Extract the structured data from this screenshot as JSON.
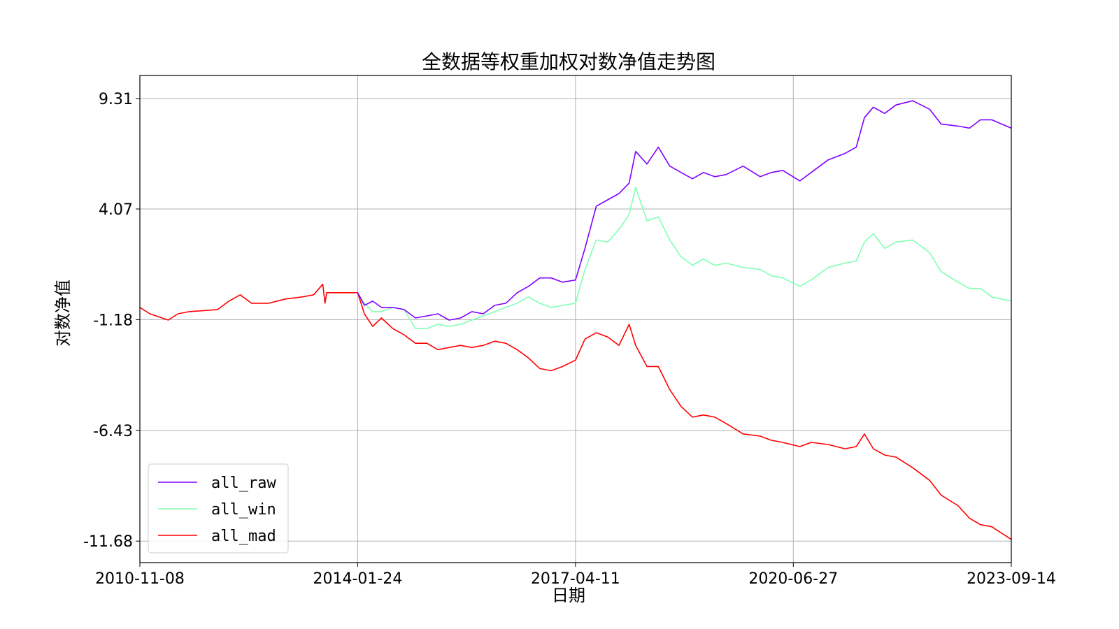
{
  "chart_data": {
    "type": "line",
    "title": "全数据等权重加权对数净值走势图",
    "xlabel": "日期",
    "ylabel": "对数净值",
    "x_ticks": [
      "2010-11-08",
      "2014-01-24",
      "2017-04-11",
      "2020-06-27",
      "2023-09-14"
    ],
    "y_ticks": [
      "9.31",
      "4.07",
      "-1.18",
      "-6.43",
      "-11.68"
    ],
    "xlim": [
      "2010-11-08",
      "2023-09-14"
    ],
    "ylim": [
      -12.7,
      10.4
    ],
    "grid": true,
    "legend_position": "lower-left",
    "series": [
      {
        "name": "all_raw",
        "color": "#8000ff",
        "points": [
          [
            "2014-01-24",
            0.1
          ],
          [
            "2014-03-01",
            -0.5
          ],
          [
            "2014-04-15",
            -0.3
          ],
          [
            "2014-06-01",
            -0.6
          ],
          [
            "2014-08-01",
            -0.6
          ],
          [
            "2014-10-01",
            -0.7
          ],
          [
            "2014-12-01",
            -1.1
          ],
          [
            "2015-02-01",
            -1.0
          ],
          [
            "2015-04-01",
            -0.9
          ],
          [
            "2015-06-01",
            -1.2
          ],
          [
            "2015-08-01",
            -1.1
          ],
          [
            "2015-10-01",
            -0.8
          ],
          [
            "2015-12-01",
            -0.9
          ],
          [
            "2016-02-01",
            -0.5
          ],
          [
            "2016-04-01",
            -0.4
          ],
          [
            "2016-06-01",
            0.1
          ],
          [
            "2016-08-01",
            0.4
          ],
          [
            "2016-10-01",
            0.8
          ],
          [
            "2016-12-01",
            0.8
          ],
          [
            "2017-02-01",
            0.6
          ],
          [
            "2017-04-11",
            0.7
          ],
          [
            "2017-06-01",
            2.2
          ],
          [
            "2017-08-01",
            4.2
          ],
          [
            "2017-10-01",
            4.5
          ],
          [
            "2017-12-01",
            4.8
          ],
          [
            "2018-01-25",
            5.3
          ],
          [
            "2018-03-01",
            6.8
          ],
          [
            "2018-05-01",
            6.2
          ],
          [
            "2018-07-01",
            7.0
          ],
          [
            "2018-09-01",
            6.1
          ],
          [
            "2018-11-01",
            5.8
          ],
          [
            "2019-01-01",
            5.5
          ],
          [
            "2019-03-01",
            5.8
          ],
          [
            "2019-05-01",
            5.6
          ],
          [
            "2019-07-01",
            5.7
          ],
          [
            "2019-10-01",
            6.1
          ],
          [
            "2020-01-01",
            5.6
          ],
          [
            "2020-03-01",
            5.8
          ],
          [
            "2020-05-01",
            5.9
          ],
          [
            "2020-08-01",
            5.4
          ],
          [
            "2020-10-01",
            5.8
          ],
          [
            "2021-01-01",
            6.4
          ],
          [
            "2021-04-01",
            6.7
          ],
          [
            "2021-06-01",
            7.0
          ],
          [
            "2021-07-15",
            8.4
          ],
          [
            "2021-09-01",
            8.9
          ],
          [
            "2021-11-01",
            8.6
          ],
          [
            "2022-01-01",
            9.0
          ],
          [
            "2022-04-01",
            9.2
          ],
          [
            "2022-07-01",
            8.8
          ],
          [
            "2022-09-01",
            8.1
          ],
          [
            "2022-12-01",
            8.0
          ],
          [
            "2023-02-01",
            7.9
          ],
          [
            "2023-04-01",
            8.3
          ],
          [
            "2023-06-01",
            8.3
          ],
          [
            "2023-09-14",
            7.9
          ]
        ]
      },
      {
        "name": "all_win",
        "color": "#80ffb4",
        "points": [
          [
            "2014-01-24",
            0.1
          ],
          [
            "2014-03-01",
            -0.4
          ],
          [
            "2014-04-15",
            -0.8
          ],
          [
            "2014-06-01",
            -0.8
          ],
          [
            "2014-08-01",
            -0.6
          ],
          [
            "2014-10-01",
            -0.7
          ],
          [
            "2014-12-01",
            -1.6
          ],
          [
            "2015-02-01",
            -1.6
          ],
          [
            "2015-04-01",
            -1.4
          ],
          [
            "2015-06-01",
            -1.5
          ],
          [
            "2015-08-01",
            -1.4
          ],
          [
            "2015-10-01",
            -1.2
          ],
          [
            "2015-12-01",
            -1.0
          ],
          [
            "2016-02-01",
            -0.8
          ],
          [
            "2016-04-01",
            -0.6
          ],
          [
            "2016-06-01",
            -0.4
          ],
          [
            "2016-08-01",
            -0.1
          ],
          [
            "2016-10-01",
            -0.4
          ],
          [
            "2016-12-01",
            -0.6
          ],
          [
            "2017-02-01",
            -0.5
          ],
          [
            "2017-04-11",
            -0.4
          ],
          [
            "2017-06-01",
            1.2
          ],
          [
            "2017-08-01",
            2.6
          ],
          [
            "2017-10-01",
            2.5
          ],
          [
            "2017-12-01",
            3.1
          ],
          [
            "2018-01-25",
            3.8
          ],
          [
            "2018-03-01",
            5.1
          ],
          [
            "2018-05-01",
            3.5
          ],
          [
            "2018-07-01",
            3.7
          ],
          [
            "2018-09-01",
            2.6
          ],
          [
            "2018-11-01",
            1.8
          ],
          [
            "2019-01-01",
            1.4
          ],
          [
            "2019-03-01",
            1.7
          ],
          [
            "2019-05-01",
            1.4
          ],
          [
            "2019-07-01",
            1.5
          ],
          [
            "2019-10-01",
            1.3
          ],
          [
            "2020-01-01",
            1.2
          ],
          [
            "2020-03-01",
            0.9
          ],
          [
            "2020-05-01",
            0.8
          ],
          [
            "2020-08-01",
            0.4
          ],
          [
            "2020-10-01",
            0.7
          ],
          [
            "2021-01-01",
            1.3
          ],
          [
            "2021-04-01",
            1.5
          ],
          [
            "2021-06-01",
            1.6
          ],
          [
            "2021-07-15",
            2.5
          ],
          [
            "2021-09-01",
            2.9
          ],
          [
            "2021-11-01",
            2.2
          ],
          [
            "2022-01-01",
            2.5
          ],
          [
            "2022-04-01",
            2.6
          ],
          [
            "2022-07-01",
            2.0
          ],
          [
            "2022-09-01",
            1.1
          ],
          [
            "2022-12-01",
            0.6
          ],
          [
            "2023-02-01",
            0.3
          ],
          [
            "2023-04-01",
            0.3
          ],
          [
            "2023-06-01",
            -0.1
          ],
          [
            "2023-09-14",
            -0.3
          ]
        ]
      },
      {
        "name": "all_mad",
        "color": "#ff0000",
        "points": [
          [
            "2010-11-08",
            -0.6
          ],
          [
            "2011-01-01",
            -0.9
          ],
          [
            "2011-04-10",
            -1.2
          ],
          [
            "2011-06-01",
            -0.9
          ],
          [
            "2011-08-01",
            -0.8
          ],
          [
            "2012-01-01",
            -0.7
          ],
          [
            "2012-03-01",
            -0.3
          ],
          [
            "2012-05-01",
            0.0
          ],
          [
            "2012-07-01",
            -0.4
          ],
          [
            "2012-10-01",
            -0.4
          ],
          [
            "2013-01-01",
            -0.2
          ],
          [
            "2013-04-01",
            -0.1
          ],
          [
            "2013-06-01",
            0.0
          ],
          [
            "2013-07-20",
            0.5
          ],
          [
            "2013-08-01",
            -0.4
          ],
          [
            "2013-08-10",
            0.1
          ],
          [
            "2013-11-01",
            0.1
          ],
          [
            "2014-01-24",
            0.1
          ],
          [
            "2014-03-01",
            -0.9
          ],
          [
            "2014-04-15",
            -1.5
          ],
          [
            "2014-06-01",
            -1.1
          ],
          [
            "2014-08-01",
            -1.6
          ],
          [
            "2014-10-01",
            -1.9
          ],
          [
            "2014-12-01",
            -2.3
          ],
          [
            "2015-02-01",
            -2.3
          ],
          [
            "2015-04-01",
            -2.6
          ],
          [
            "2015-06-01",
            -2.5
          ],
          [
            "2015-08-01",
            -2.4
          ],
          [
            "2015-10-01",
            -2.5
          ],
          [
            "2015-12-01",
            -2.4
          ],
          [
            "2016-02-01",
            -2.2
          ],
          [
            "2016-04-01",
            -2.3
          ],
          [
            "2016-06-01",
            -2.6
          ],
          [
            "2016-08-01",
            -3.0
          ],
          [
            "2016-10-01",
            -3.5
          ],
          [
            "2016-12-01",
            -3.6
          ],
          [
            "2017-02-01",
            -3.4
          ],
          [
            "2017-04-11",
            -3.1
          ],
          [
            "2017-06-01",
            -2.1
          ],
          [
            "2017-08-01",
            -1.8
          ],
          [
            "2017-10-01",
            -2.0
          ],
          [
            "2017-12-01",
            -2.4
          ],
          [
            "2018-01-25",
            -1.4
          ],
          [
            "2018-03-01",
            -2.4
          ],
          [
            "2018-05-01",
            -3.4
          ],
          [
            "2018-07-01",
            -3.4
          ],
          [
            "2018-09-01",
            -4.5
          ],
          [
            "2018-11-01",
            -5.3
          ],
          [
            "2019-01-01",
            -5.8
          ],
          [
            "2019-03-01",
            -5.7
          ],
          [
            "2019-05-01",
            -5.8
          ],
          [
            "2019-07-01",
            -6.1
          ],
          [
            "2019-10-01",
            -6.6
          ],
          [
            "2020-01-01",
            -6.7
          ],
          [
            "2020-03-01",
            -6.9
          ],
          [
            "2020-05-01",
            -7.0
          ],
          [
            "2020-08-01",
            -7.2
          ],
          [
            "2020-10-01",
            -7.0
          ],
          [
            "2021-01-01",
            -7.1
          ],
          [
            "2021-04-01",
            -7.3
          ],
          [
            "2021-06-01",
            -7.2
          ],
          [
            "2021-07-15",
            -6.6
          ],
          [
            "2021-09-01",
            -7.3
          ],
          [
            "2021-11-01",
            -7.6
          ],
          [
            "2022-01-01",
            -7.7
          ],
          [
            "2022-04-01",
            -8.2
          ],
          [
            "2022-07-01",
            -8.8
          ],
          [
            "2022-09-01",
            -9.5
          ],
          [
            "2022-12-01",
            -10.0
          ],
          [
            "2023-02-01",
            -10.6
          ],
          [
            "2023-04-01",
            -10.9
          ],
          [
            "2023-06-01",
            -11.0
          ],
          [
            "2023-09-14",
            -11.6
          ]
        ]
      }
    ]
  }
}
